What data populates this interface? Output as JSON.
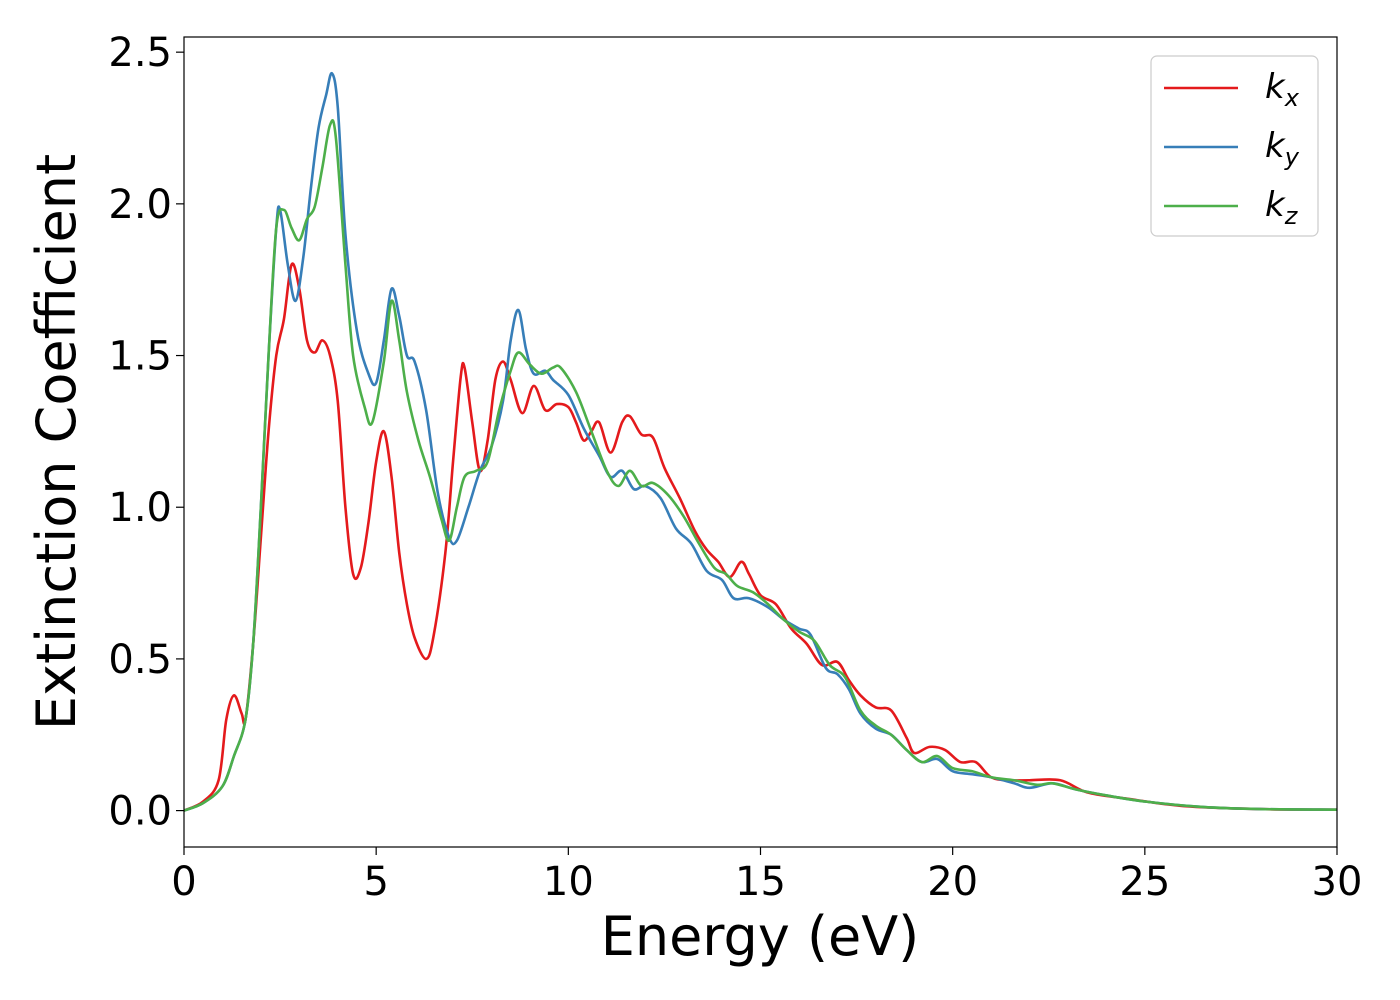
{
  "chart_data": {
    "type": "line",
    "title": "",
    "xlabel": "Energy (eV)",
    "ylabel": "Extinction Coefficient",
    "xlim": [
      0,
      30
    ],
    "ylim": [
      -0.12,
      2.55
    ],
    "xticks": [
      0,
      5,
      10,
      15,
      20,
      25,
      30
    ],
    "xtick_labels": [
      "0",
      "5",
      "10",
      "15",
      "20",
      "25",
      "30"
    ],
    "yticks": [
      0.0,
      0.5,
      1.0,
      1.5,
      2.0,
      2.5
    ],
    "ytick_labels": [
      "0.0",
      "0.5",
      "1.0",
      "1.5",
      "2.0",
      "2.5"
    ],
    "grid": false,
    "legend_position": "top-right",
    "series": [
      {
        "name": "k_x",
        "legend_main": "k",
        "legend_sub": "x",
        "color": "#e41a1c",
        "points": [
          [
            0,
            0
          ],
          [
            0.5,
            0.03
          ],
          [
            0.9,
            0.1
          ],
          [
            1.1,
            0.3
          ],
          [
            1.3,
            0.38
          ],
          [
            1.5,
            0.32
          ],
          [
            1.6,
            0.3
          ],
          [
            1.8,
            0.55
          ],
          [
            2.0,
            0.9
          ],
          [
            2.2,
            1.25
          ],
          [
            2.4,
            1.5
          ],
          [
            2.6,
            1.62
          ],
          [
            2.8,
            1.8
          ],
          [
            3.0,
            1.72
          ],
          [
            3.2,
            1.55
          ],
          [
            3.4,
            1.51
          ],
          [
            3.6,
            1.55
          ],
          [
            3.8,
            1.5
          ],
          [
            4.0,
            1.35
          ],
          [
            4.2,
            1.0
          ],
          [
            4.4,
            0.78
          ],
          [
            4.6,
            0.8
          ],
          [
            4.8,
            0.95
          ],
          [
            5.0,
            1.15
          ],
          [
            5.2,
            1.25
          ],
          [
            5.4,
            1.1
          ],
          [
            5.6,
            0.85
          ],
          [
            5.8,
            0.68
          ],
          [
            6.0,
            0.57
          ],
          [
            6.3,
            0.5
          ],
          [
            6.5,
            0.58
          ],
          [
            6.8,
            0.85
          ],
          [
            7.0,
            1.15
          ],
          [
            7.2,
            1.43
          ],
          [
            7.3,
            1.46
          ],
          [
            7.5,
            1.28
          ],
          [
            7.7,
            1.12
          ],
          [
            7.9,
            1.22
          ],
          [
            8.1,
            1.42
          ],
          [
            8.3,
            1.48
          ],
          [
            8.5,
            1.42
          ],
          [
            8.8,
            1.31
          ],
          [
            9.1,
            1.4
          ],
          [
            9.4,
            1.32
          ],
          [
            9.7,
            1.34
          ],
          [
            10.0,
            1.33
          ],
          [
            10.2,
            1.28
          ],
          [
            10.4,
            1.22
          ],
          [
            10.6,
            1.25
          ],
          [
            10.8,
            1.28
          ],
          [
            11.1,
            1.18
          ],
          [
            11.4,
            1.28
          ],
          [
            11.6,
            1.3
          ],
          [
            11.9,
            1.24
          ],
          [
            12.2,
            1.23
          ],
          [
            12.5,
            1.13
          ],
          [
            12.9,
            1.03
          ],
          [
            13.3,
            0.92
          ],
          [
            13.6,
            0.86
          ],
          [
            13.9,
            0.82
          ],
          [
            14.2,
            0.77
          ],
          [
            14.5,
            0.82
          ],
          [
            14.7,
            0.78
          ],
          [
            15.0,
            0.71
          ],
          [
            15.4,
            0.68
          ],
          [
            15.8,
            0.6
          ],
          [
            16.2,
            0.55
          ],
          [
            16.6,
            0.48
          ],
          [
            17.0,
            0.49
          ],
          [
            17.3,
            0.43
          ],
          [
            17.6,
            0.38
          ],
          [
            18.0,
            0.34
          ],
          [
            18.4,
            0.33
          ],
          [
            18.8,
            0.24
          ],
          [
            19.0,
            0.19
          ],
          [
            19.4,
            0.21
          ],
          [
            19.8,
            0.2
          ],
          [
            20.2,
            0.16
          ],
          [
            20.6,
            0.16
          ],
          [
            21.0,
            0.11
          ],
          [
            21.5,
            0.1
          ],
          [
            22.0,
            0.1
          ],
          [
            22.8,
            0.1
          ],
          [
            23.5,
            0.06
          ],
          [
            24.5,
            0.04
          ],
          [
            26.0,
            0.015
          ],
          [
            28.0,
            0.005
          ],
          [
            30.0,
            0.003
          ]
        ]
      },
      {
        "name": "k_y",
        "legend_main": "k",
        "legend_sub": "y",
        "color": "#377eb8",
        "points": [
          [
            0,
            0
          ],
          [
            0.5,
            0.025
          ],
          [
            1.0,
            0.08
          ],
          [
            1.3,
            0.18
          ],
          [
            1.6,
            0.3
          ],
          [
            1.8,
            0.55
          ],
          [
            2.0,
            1.0
          ],
          [
            2.2,
            1.5
          ],
          [
            2.4,
            1.92
          ],
          [
            2.5,
            1.98
          ],
          [
            2.7,
            1.8
          ],
          [
            2.9,
            1.68
          ],
          [
            3.1,
            1.82
          ],
          [
            3.3,
            2.05
          ],
          [
            3.5,
            2.25
          ],
          [
            3.7,
            2.36
          ],
          [
            3.85,
            2.43
          ],
          [
            4.0,
            2.32
          ],
          [
            4.2,
            1.9
          ],
          [
            4.5,
            1.58
          ],
          [
            4.8,
            1.44
          ],
          [
            5.0,
            1.41
          ],
          [
            5.2,
            1.55
          ],
          [
            5.4,
            1.72
          ],
          [
            5.6,
            1.63
          ],
          [
            5.8,
            1.5
          ],
          [
            6.0,
            1.48
          ],
          [
            6.3,
            1.32
          ],
          [
            6.6,
            1.05
          ],
          [
            6.9,
            0.9
          ],
          [
            7.1,
            0.89
          ],
          [
            7.4,
            1.0
          ],
          [
            7.7,
            1.12
          ],
          [
            8.0,
            1.2
          ],
          [
            8.3,
            1.35
          ],
          [
            8.5,
            1.55
          ],
          [
            8.7,
            1.65
          ],
          [
            8.9,
            1.52
          ],
          [
            9.1,
            1.44
          ],
          [
            9.4,
            1.45
          ],
          [
            9.6,
            1.42
          ],
          [
            10.0,
            1.37
          ],
          [
            10.4,
            1.26
          ],
          [
            10.8,
            1.17
          ],
          [
            11.1,
            1.1
          ],
          [
            11.4,
            1.12
          ],
          [
            11.7,
            1.06
          ],
          [
            12.0,
            1.07
          ],
          [
            12.4,
            1.03
          ],
          [
            12.8,
            0.93
          ],
          [
            13.2,
            0.88
          ],
          [
            13.6,
            0.79
          ],
          [
            14.0,
            0.76
          ],
          [
            14.3,
            0.7
          ],
          [
            14.7,
            0.7
          ],
          [
            15.2,
            0.67
          ],
          [
            15.6,
            0.63
          ],
          [
            16.0,
            0.6
          ],
          [
            16.3,
            0.58
          ],
          [
            16.7,
            0.47
          ],
          [
            17.0,
            0.45
          ],
          [
            17.3,
            0.4
          ],
          [
            17.6,
            0.32
          ],
          [
            18.0,
            0.27
          ],
          [
            18.4,
            0.25
          ],
          [
            18.8,
            0.2
          ],
          [
            19.2,
            0.16
          ],
          [
            19.6,
            0.17
          ],
          [
            20.0,
            0.13
          ],
          [
            20.5,
            0.12
          ],
          [
            21.0,
            0.11
          ],
          [
            21.6,
            0.09
          ],
          [
            22.0,
            0.075
          ],
          [
            22.6,
            0.09
          ],
          [
            23.2,
            0.07
          ],
          [
            24.0,
            0.05
          ],
          [
            25.0,
            0.03
          ],
          [
            26.5,
            0.012
          ],
          [
            28.0,
            0.005
          ],
          [
            30.0,
            0.003
          ]
        ]
      },
      {
        "name": "k_z",
        "legend_main": "k",
        "legend_sub": "z",
        "color": "#4daf4a",
        "points": [
          [
            0,
            0
          ],
          [
            0.5,
            0.025
          ],
          [
            1.0,
            0.08
          ],
          [
            1.3,
            0.18
          ],
          [
            1.6,
            0.3
          ],
          [
            1.8,
            0.55
          ],
          [
            2.0,
            1.0
          ],
          [
            2.2,
            1.5
          ],
          [
            2.4,
            1.92
          ],
          [
            2.6,
            1.98
          ],
          [
            2.8,
            1.92
          ],
          [
            3.0,
            1.88
          ],
          [
            3.2,
            1.95
          ],
          [
            3.4,
            1.99
          ],
          [
            3.6,
            2.12
          ],
          [
            3.8,
            2.26
          ],
          [
            3.95,
            2.22
          ],
          [
            4.2,
            1.8
          ],
          [
            4.4,
            1.5
          ],
          [
            4.7,
            1.33
          ],
          [
            4.9,
            1.28
          ],
          [
            5.2,
            1.48
          ],
          [
            5.4,
            1.68
          ],
          [
            5.6,
            1.55
          ],
          [
            5.8,
            1.38
          ],
          [
            6.1,
            1.22
          ],
          [
            6.4,
            1.1
          ],
          [
            6.7,
            0.96
          ],
          [
            6.9,
            0.89
          ],
          [
            7.1,
            1.0
          ],
          [
            7.3,
            1.1
          ],
          [
            7.6,
            1.12
          ],
          [
            7.9,
            1.15
          ],
          [
            8.2,
            1.32
          ],
          [
            8.5,
            1.45
          ],
          [
            8.7,
            1.51
          ],
          [
            9.0,
            1.47
          ],
          [
            9.3,
            1.44
          ],
          [
            9.6,
            1.46
          ],
          [
            9.8,
            1.46
          ],
          [
            10.2,
            1.38
          ],
          [
            10.6,
            1.25
          ],
          [
            11.0,
            1.12
          ],
          [
            11.3,
            1.07
          ],
          [
            11.6,
            1.12
          ],
          [
            11.9,
            1.07
          ],
          [
            12.2,
            1.08
          ],
          [
            12.6,
            1.04
          ],
          [
            13.0,
            0.97
          ],
          [
            13.4,
            0.88
          ],
          [
            13.8,
            0.8
          ],
          [
            14.1,
            0.78
          ],
          [
            14.4,
            0.74
          ],
          [
            14.8,
            0.72
          ],
          [
            15.2,
            0.68
          ],
          [
            15.6,
            0.63
          ],
          [
            16.0,
            0.59
          ],
          [
            16.4,
            0.56
          ],
          [
            16.8,
            0.48
          ],
          [
            17.2,
            0.44
          ],
          [
            17.6,
            0.33
          ],
          [
            18.0,
            0.28
          ],
          [
            18.4,
            0.25
          ],
          [
            18.8,
            0.2
          ],
          [
            19.2,
            0.16
          ],
          [
            19.6,
            0.18
          ],
          [
            20.0,
            0.14
          ],
          [
            20.5,
            0.13
          ],
          [
            21.0,
            0.11
          ],
          [
            21.6,
            0.1
          ],
          [
            22.2,
            0.085
          ],
          [
            22.6,
            0.09
          ],
          [
            23.2,
            0.07
          ],
          [
            24.0,
            0.05
          ],
          [
            25.0,
            0.03
          ],
          [
            26.5,
            0.012
          ],
          [
            28.0,
            0.005
          ],
          [
            30.0,
            0.003
          ]
        ]
      }
    ]
  }
}
